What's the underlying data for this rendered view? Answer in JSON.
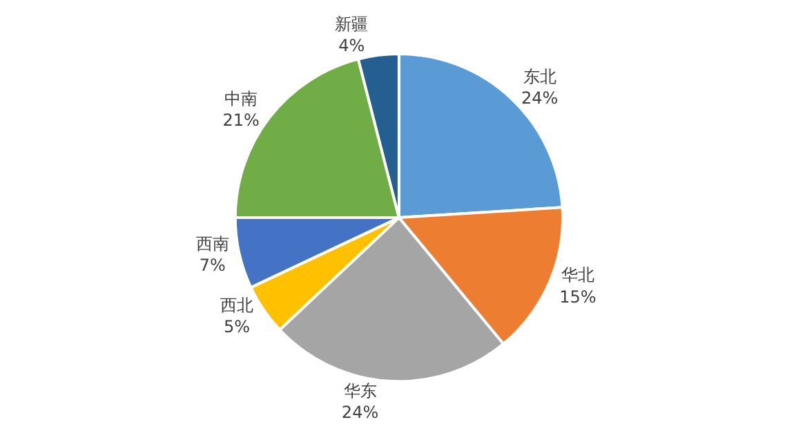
{
  "chart_data": {
    "type": "pie",
    "categories": [
      "东北",
      "华北",
      "华东",
      "西北",
      "西南",
      "中南",
      "新疆"
    ],
    "values": [
      24,
      15,
      24,
      5,
      7,
      21,
      4
    ],
    "value_labels": [
      "24%",
      "15%",
      "24%",
      "5%",
      "7%",
      "21%",
      "4%"
    ],
    "colors": [
      "#5b9bd5",
      "#ed7d31",
      "#a5a5a5",
      "#ffc000",
      "#4472c4",
      "#70ad47",
      "#255e91"
    ],
    "legend": false
  }
}
